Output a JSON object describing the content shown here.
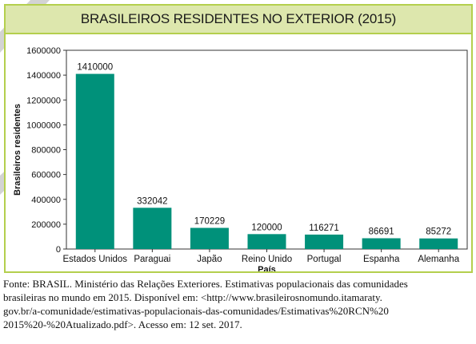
{
  "chart_data": {
    "type": "bar",
    "title": "BRASILEIROS RESIDENTES NO EXTERIOR (2015)",
    "xlabel": "País",
    "ylabel": "Brasileiros residentes",
    "categories": [
      "Estados Unidos",
      "Paraguai",
      "Japão",
      "Reino Unido",
      "Portugal",
      "Espanha",
      "Alemanha"
    ],
    "values": [
      1410000,
      332042,
      170229,
      120000,
      116271,
      86691,
      85272
    ],
    "value_labels": [
      "1410000",
      "332042",
      "170229",
      "120000",
      "116271",
      "86691",
      "85272"
    ],
    "ylim": [
      0,
      1600000
    ],
    "yticks": [
      0,
      200000,
      400000,
      600000,
      800000,
      1000000,
      1200000,
      1400000,
      1600000
    ],
    "ytick_labels": [
      "0",
      "200000",
      "400000",
      "600000",
      "800000",
      "1000000",
      "1200000",
      "1400000",
      "1600000"
    ],
    "grid": false,
    "bar_color": "#00917a"
  },
  "colors": {
    "title_background": "#dde7ad",
    "frame_border": "#b4cf4d",
    "corner_mark": "#d3d3d3"
  },
  "source_lines": [
    "Fonte: BRASIL. Ministério das Relações Exteriores. Estimativas populacionais das comunidades",
    "brasileiras no mundo em 2015. Disponível em: <http://www.brasileirosnomundo.itamaraty.",
    "gov.br/a-comunidade/estimativas-populacionais-das-comunidades/Estimativas%20RCN%20",
    "2015%20-%20Atualizado.pdf>. Acesso em: 12 set. 2017."
  ]
}
